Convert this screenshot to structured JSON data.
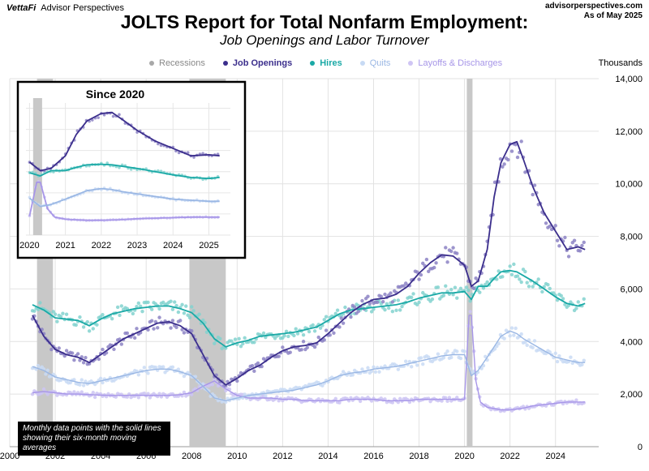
{
  "header": {
    "brand_logo": "VettaFi",
    "brand_sub": "Advisor Perspectives",
    "source_line1": "advisorperspectives.com",
    "source_line2": "As of May 2025",
    "title": "JOLTS Report for Total Nonfarm Employment:",
    "subtitle": "Job Openings and Labor Turnover"
  },
  "note": "Monthly data points with the solid lines showing their six-month moving averages",
  "colors": {
    "recession": "#c8c8c8",
    "job_openings": "#3b2e8c",
    "hires": "#1aa9a6",
    "quits": "#9ab7e4",
    "layoffs": "#a796e8"
  },
  "chart_data": {
    "type": "line",
    "title": "JOLTS Report for Total Nonfarm Employment:",
    "subtitle": "Job Openings and Labor Turnover",
    "ylabel": "Thousands",
    "xlim": [
      2000,
      2025.9
    ],
    "ylim": [
      0,
      14000
    ],
    "x_ticks": [
      "2000",
      "2002",
      "2004",
      "2006",
      "2008",
      "2010",
      "2012",
      "2014",
      "2016",
      "2018",
      "2020",
      "2022",
      "2024"
    ],
    "y_ticks": [
      "0",
      "2,000",
      "4,000",
      "6,000",
      "8,000",
      "10,000",
      "12,000",
      "14,000"
    ],
    "grid": true,
    "legend_position": "top",
    "recessions": [
      [
        2001.2,
        2001.9
      ],
      [
        2007.9,
        2009.5
      ],
      [
        2020.1,
        2020.35
      ]
    ],
    "series": [
      {
        "name": "Recessions",
        "key": "recession"
      },
      {
        "name": "Job Openings",
        "key": "job_openings",
        "x": [
          2001.0,
          2001.5,
          2002.0,
          2002.5,
          2003.0,
          2003.5,
          2004.0,
          2004.5,
          2005.0,
          2005.5,
          2006.0,
          2006.5,
          2007.0,
          2007.5,
          2008.0,
          2008.5,
          2009.0,
          2009.5,
          2010.0,
          2010.5,
          2011.0,
          2011.5,
          2012.0,
          2012.5,
          2013.0,
          2013.5,
          2014.0,
          2014.5,
          2015.0,
          2015.5,
          2016.0,
          2016.5,
          2017.0,
          2017.5,
          2018.0,
          2018.5,
          2019.0,
          2019.5,
          2020.0,
          2020.3,
          2020.6,
          2021.0,
          2021.3,
          2021.6,
          2022.0,
          2022.3,
          2022.6,
          2023.0,
          2023.5,
          2024.0,
          2024.5,
          2025.0,
          2025.3
        ],
        "y": [
          5000,
          4200,
          3700,
          3500,
          3400,
          3200,
          3500,
          3800,
          4100,
          4300,
          4500,
          4700,
          4750,
          4600,
          4300,
          3500,
          2700,
          2350,
          2600,
          2900,
          3100,
          3400,
          3650,
          3800,
          3850,
          3950,
          4300,
          4700,
          5100,
          5400,
          5600,
          5650,
          5800,
          6100,
          6600,
          7000,
          7300,
          7250,
          6900,
          6100,
          6300,
          7500,
          9500,
          10800,
          11500,
          11600,
          10900,
          9900,
          8900,
          8200,
          7500,
          7600,
          7500
        ]
      },
      {
        "name": "Hires",
        "key": "hires",
        "x": [
          2001.0,
          2001.5,
          2002.0,
          2002.5,
          2003.0,
          2003.5,
          2004.0,
          2004.5,
          2005.0,
          2005.5,
          2006.0,
          2006.5,
          2007.0,
          2007.5,
          2008.0,
          2008.5,
          2009.0,
          2009.5,
          2010.0,
          2010.5,
          2011.0,
          2011.5,
          2012.0,
          2012.5,
          2013.0,
          2013.5,
          2014.0,
          2014.5,
          2015.0,
          2015.5,
          2016.0,
          2016.5,
          2017.0,
          2017.5,
          2018.0,
          2018.5,
          2019.0,
          2019.5,
          2020.0,
          2020.3,
          2020.6,
          2021.0,
          2021.3,
          2021.6,
          2022.0,
          2022.3,
          2022.6,
          2023.0,
          2023.5,
          2024.0,
          2024.5,
          2025.0,
          2025.3
        ],
        "y": [
          5400,
          5200,
          4900,
          4850,
          4800,
          4600,
          4850,
          5050,
          5150,
          5250,
          5300,
          5350,
          5350,
          5250,
          5100,
          4700,
          4100,
          3800,
          3950,
          4050,
          4200,
          4250,
          4300,
          4350,
          4450,
          4550,
          4800,
          5050,
          5200,
          5250,
          5300,
          5350,
          5400,
          5500,
          5650,
          5750,
          5850,
          5850,
          5900,
          5600,
          6100,
          6100,
          6400,
          6650,
          6700,
          6650,
          6500,
          6300,
          6000,
          5700,
          5450,
          5350,
          5450
        ]
      },
      {
        "name": "Quits",
        "key": "quits",
        "x": [
          2001.0,
          2001.5,
          2002.0,
          2002.5,
          2003.0,
          2003.5,
          2004.0,
          2004.5,
          2005.0,
          2005.5,
          2006.0,
          2006.5,
          2007.0,
          2007.5,
          2008.0,
          2008.5,
          2009.0,
          2009.5,
          2010.0,
          2010.5,
          2011.0,
          2011.5,
          2012.0,
          2012.5,
          2013.0,
          2013.5,
          2014.0,
          2014.5,
          2015.0,
          2015.5,
          2016.0,
          2016.5,
          2017.0,
          2017.5,
          2018.0,
          2018.5,
          2019.0,
          2019.5,
          2020.0,
          2020.3,
          2020.6,
          2021.0,
          2021.3,
          2021.6,
          2022.0,
          2022.3,
          2022.6,
          2023.0,
          2023.5,
          2024.0,
          2024.5,
          2025.0,
          2025.3
        ],
        "y": [
          3050,
          2900,
          2650,
          2550,
          2450,
          2400,
          2500,
          2600,
          2700,
          2800,
          2900,
          2950,
          2950,
          2850,
          2700,
          2300,
          1850,
          1750,
          1850,
          1950,
          2000,
          2050,
          2100,
          2150,
          2250,
          2350,
          2500,
          2700,
          2800,
          2850,
          2950,
          3000,
          3050,
          3150,
          3250,
          3350,
          3450,
          3500,
          3500,
          2700,
          2900,
          3400,
          3800,
          4200,
          4400,
          4300,
          4100,
          3900,
          3650,
          3400,
          3300,
          3200,
          3200
        ]
      },
      {
        "name": "Layoffs & Discharges",
        "key": "layoffs",
        "x": [
          2001.0,
          2001.5,
          2002.0,
          2002.5,
          2003.0,
          2003.5,
          2004.0,
          2004.5,
          2005.0,
          2005.5,
          2006.0,
          2006.5,
          2007.0,
          2007.5,
          2008.0,
          2008.5,
          2009.0,
          2009.5,
          2010.0,
          2010.5,
          2011.0,
          2011.5,
          2012.0,
          2012.5,
          2013.0,
          2013.5,
          2014.0,
          2014.5,
          2015.0,
          2015.5,
          2016.0,
          2016.5,
          2017.0,
          2017.5,
          2018.0,
          2018.5,
          2019.0,
          2019.5,
          2020.0,
          2020.2,
          2020.3,
          2020.5,
          2020.7,
          2021.0,
          2021.3,
          2021.6,
          2022.0,
          2022.5,
          2023.0,
          2023.5,
          2024.0,
          2024.5,
          2025.0,
          2025.3
        ],
        "y": [
          2050,
          2100,
          2050,
          2000,
          2000,
          1980,
          1960,
          1950,
          1950,
          1960,
          1950,
          1950,
          1950,
          1980,
          2050,
          2300,
          2500,
          2200,
          1950,
          1850,
          1850,
          1850,
          1800,
          1800,
          1750,
          1750,
          1750,
          1750,
          1800,
          1800,
          1800,
          1750,
          1750,
          1750,
          1800,
          1800,
          1800,
          1800,
          1800,
          5000,
          5000,
          2500,
          1700,
          1500,
          1450,
          1400,
          1400,
          1450,
          1550,
          1600,
          1650,
          1700,
          1700,
          1700
        ]
      }
    ],
    "inset": {
      "title": "Since 2020",
      "xlim": [
        2019.9,
        2025.6
      ],
      "ylim": [
        0,
        12500
      ],
      "x_ticks": [
        "2020",
        "2021",
        "2022",
        "2023",
        "2024",
        "2025"
      ],
      "recessions": [
        [
          2020.1,
          2020.35
        ]
      ],
      "uses_series_from": "parent"
    }
  }
}
